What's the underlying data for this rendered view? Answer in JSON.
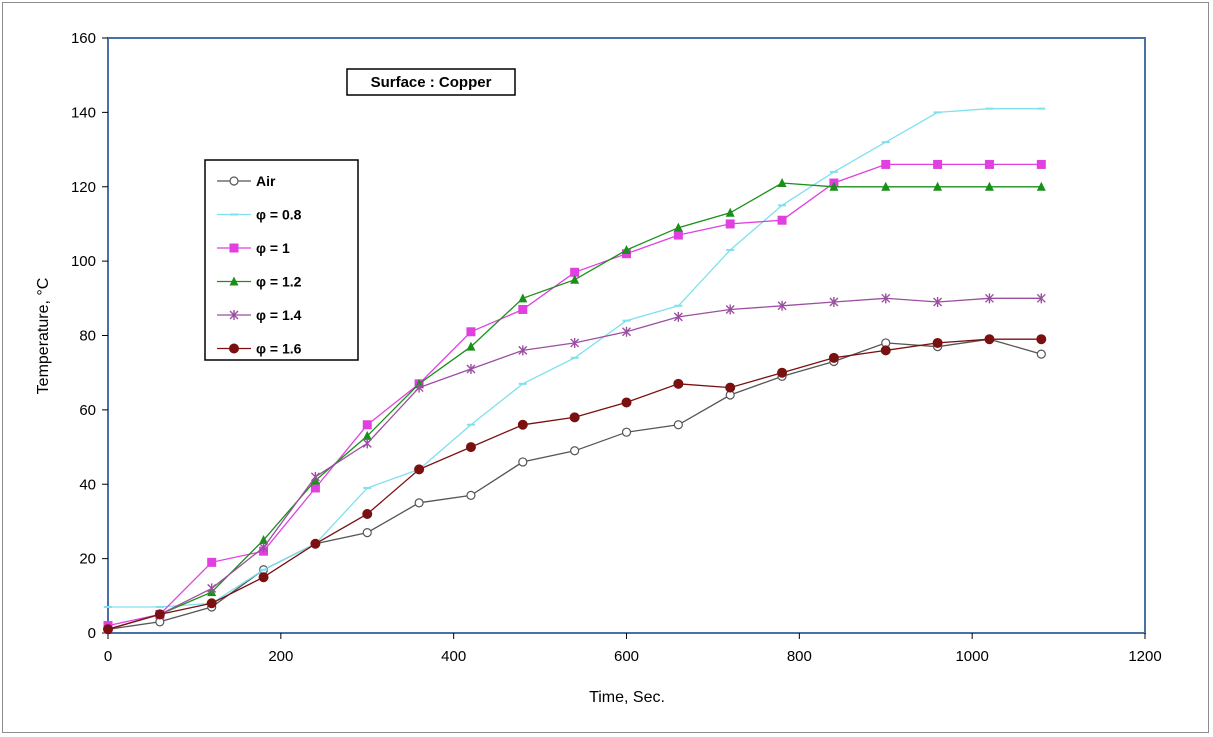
{
  "chart_data": {
    "type": "line",
    "title": "Surface : Copper",
    "xlabel": "Time, Sec.",
    "ylabel": "Temperature, °C",
    "xlim": [
      0,
      1200
    ],
    "ylim": [
      0,
      160
    ],
    "xticks": [
      0,
      200,
      400,
      600,
      800,
      1000,
      1200
    ],
    "yticks": [
      0,
      20,
      40,
      60,
      80,
      100,
      120,
      140,
      160
    ],
    "grid": false,
    "legend_position": "left",
    "x": [
      0,
      60,
      120,
      180,
      240,
      300,
      360,
      420,
      480,
      540,
      600,
      660,
      720,
      780,
      840,
      900,
      960,
      1020,
      1080
    ],
    "series": [
      {
        "name": "Air",
        "color": "#555555",
        "marker": "open-circle",
        "values": [
          1,
          3,
          7,
          17,
          24,
          27,
          35,
          37,
          46,
          49,
          54,
          56,
          64,
          69,
          73,
          78,
          77,
          79,
          75
        ]
      },
      {
        "name": "φ = 0.8",
        "color": "#7fe0f0",
        "marker": "dash",
        "values": [
          7,
          7,
          8,
          17,
          24,
          39,
          44,
          56,
          67,
          74,
          84,
          88,
          103,
          115,
          124,
          132,
          140,
          141,
          141
        ]
      },
      {
        "name": "φ = 1",
        "color": "#e040e0",
        "marker": "square",
        "values": [
          2,
          5,
          19,
          22,
          39,
          56,
          67,
          81,
          87,
          97,
          102,
          107,
          110,
          111,
          121,
          126,
          126,
          126,
          126
        ]
      },
      {
        "name": "φ = 1.2",
        "color": "#1a8f1a",
        "marker": "triangle",
        "values": [
          1,
          5,
          11,
          25,
          41,
          53,
          67,
          77,
          90,
          95,
          103,
          109,
          113,
          121,
          120,
          120,
          120,
          120,
          120
        ]
      },
      {
        "name": "φ = 1.4",
        "color": "#9b4fa0",
        "marker": "star",
        "values": [
          1,
          5,
          12,
          23,
          42,
          51,
          66,
          71,
          76,
          78,
          81,
          85,
          87,
          88,
          89,
          90,
          89,
          90,
          90
        ]
      },
      {
        "name": "φ = 1.6",
        "color": "#7a1010",
        "marker": "filled-circle",
        "values": [
          1,
          5,
          8,
          15,
          24,
          32,
          44,
          50,
          56,
          58,
          62,
          67,
          66,
          70,
          74,
          76,
          78,
          79,
          79
        ]
      }
    ]
  }
}
